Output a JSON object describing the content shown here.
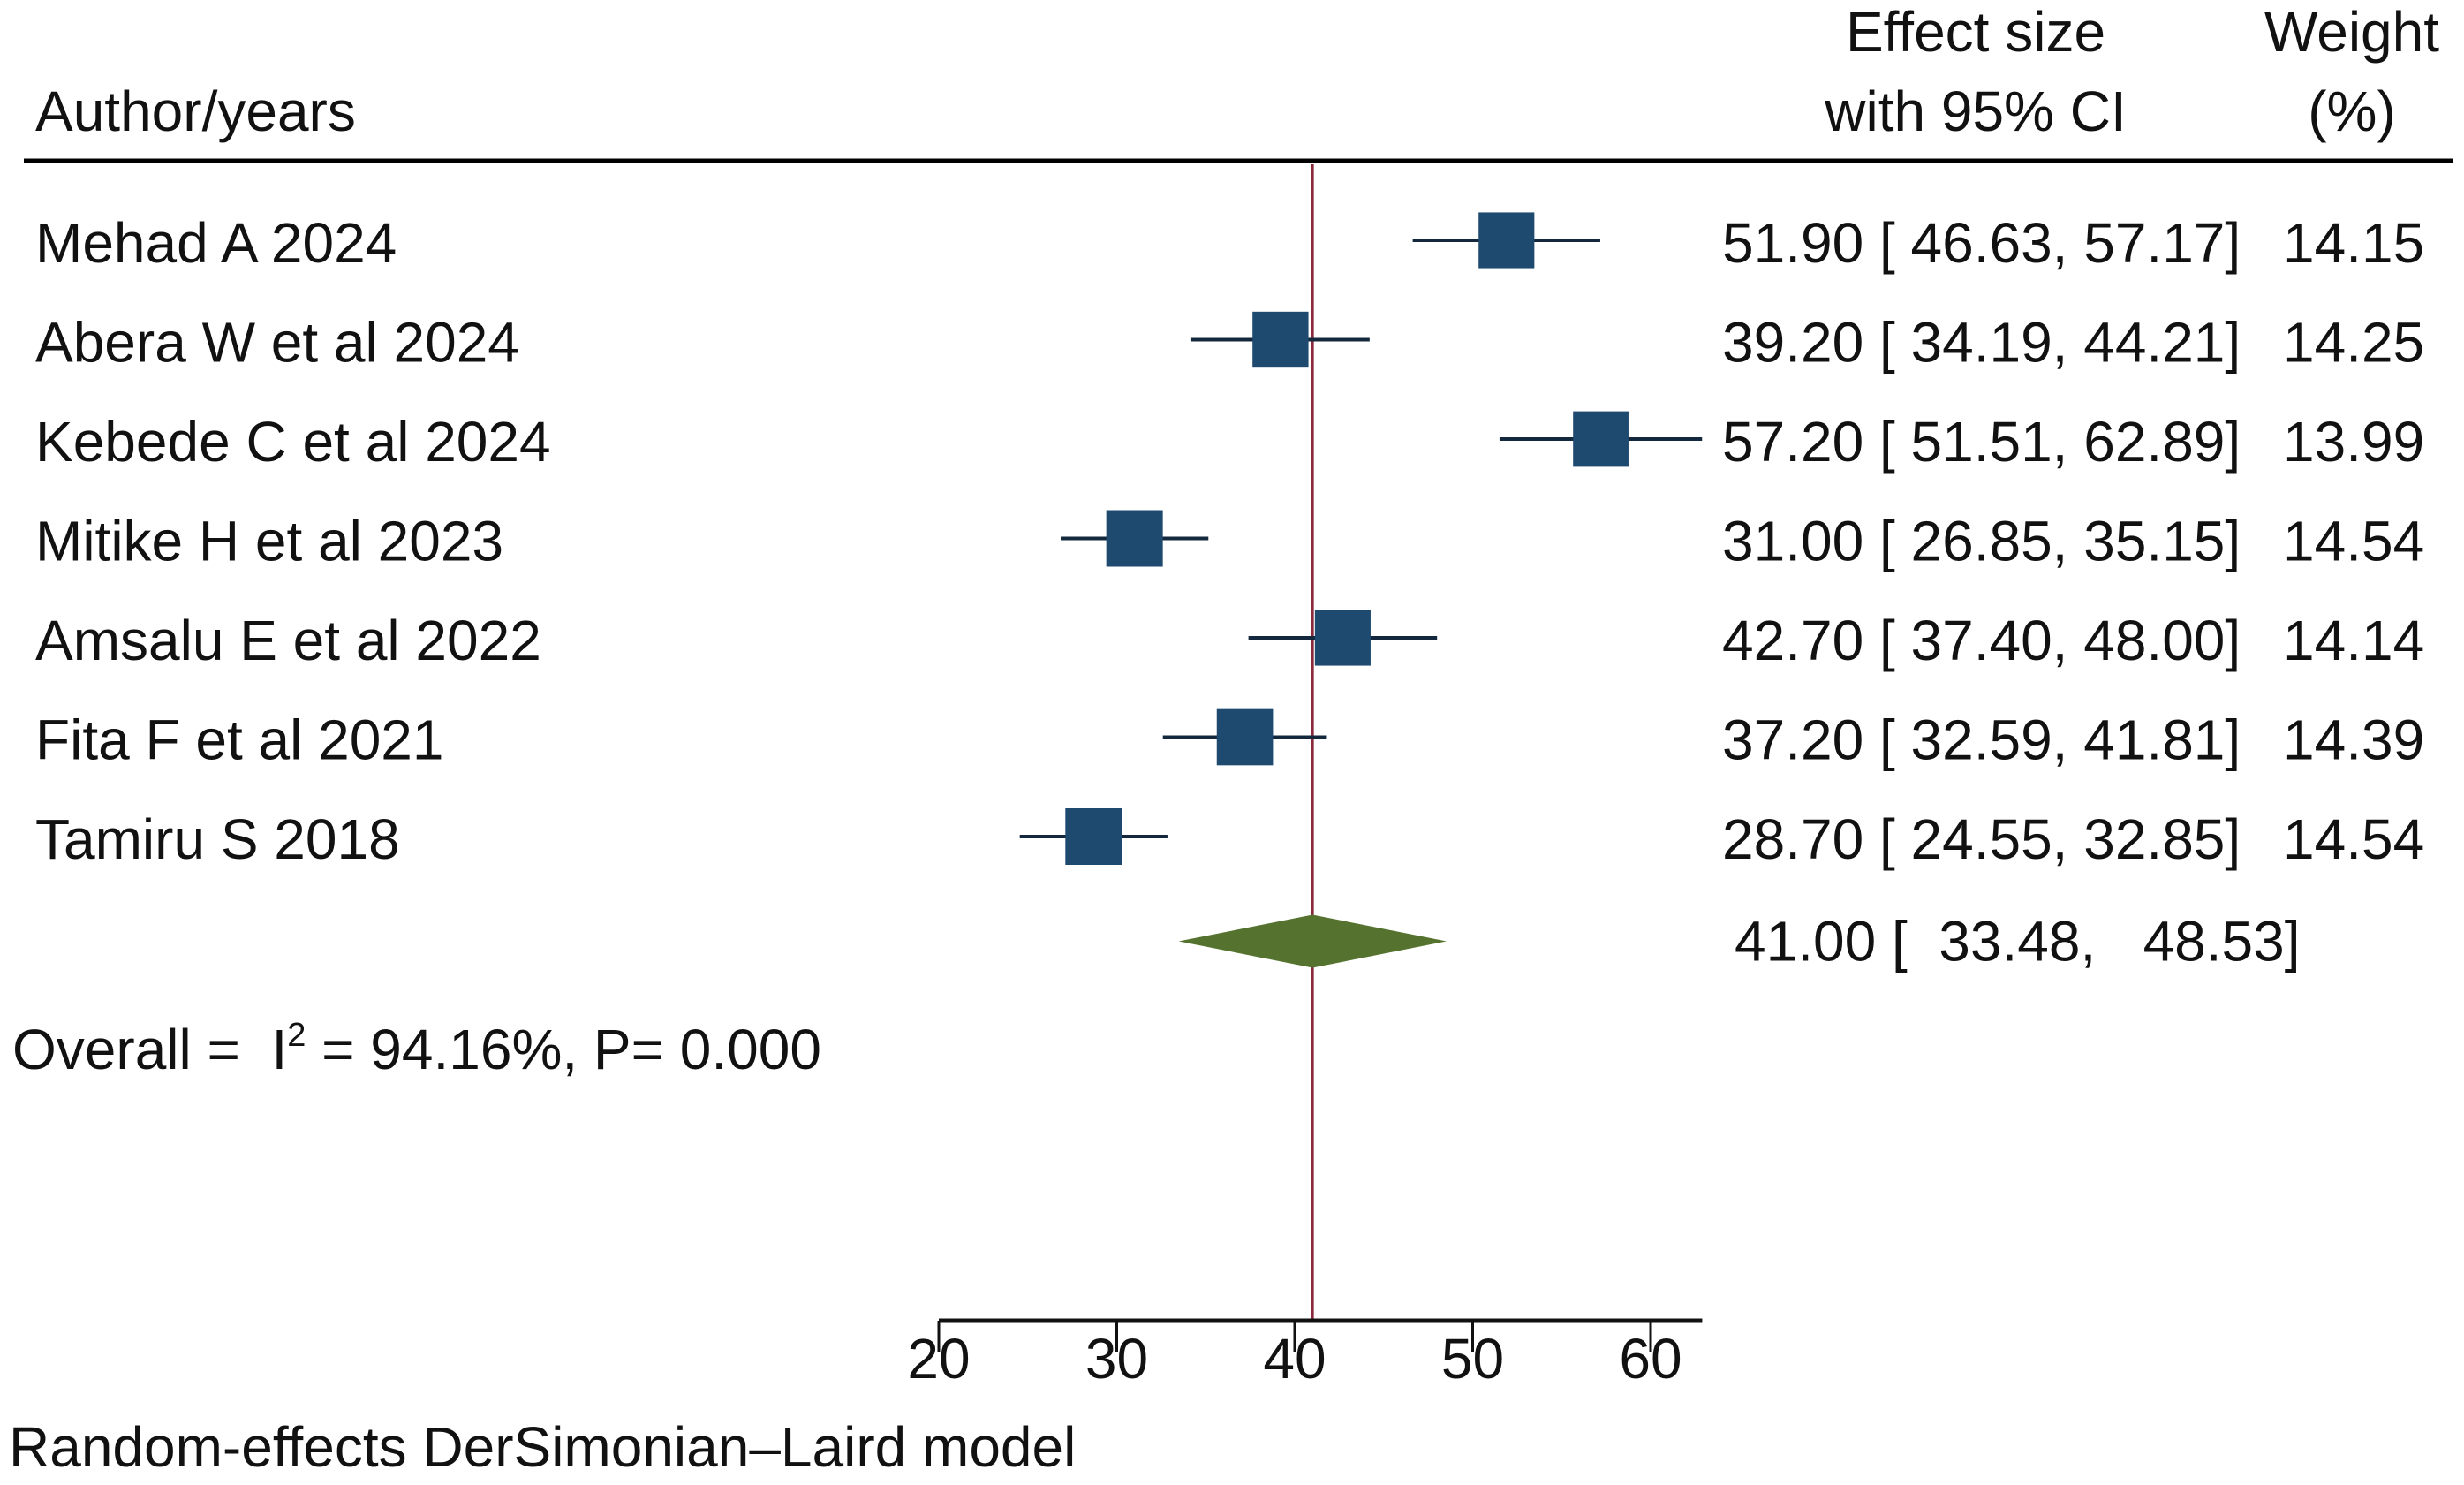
{
  "chart_data": {
    "type": "forest",
    "headers": {
      "study": "Author/years",
      "effect_line1": "Effect size",
      "effect_line2": "with 95% CI",
      "weight_line1": "Weight",
      "weight_line2": "(%)"
    },
    "studies": [
      {
        "label": "Mehad A 2024",
        "es": 51.9,
        "lo": 46.63,
        "hi": 57.17,
        "ci_text": "51.90 [ 46.63,  57.17]",
        "weight": 14.15,
        "weight_text": "14.15"
      },
      {
        "label": "Abera W et al 2024",
        "es": 39.2,
        "lo": 34.19,
        "hi": 44.21,
        "ci_text": "39.20 [ 34.19,  44.21]",
        "weight": 14.25,
        "weight_text": "14.25"
      },
      {
        "label": "Kebede  C et al 2024",
        "es": 57.2,
        "lo": 51.51,
        "hi": 62.89,
        "ci_text": "57.20 [ 51.51,  62.89]",
        "weight": 13.99,
        "weight_text": "13.99"
      },
      {
        "label": "Mitike H et al 2023",
        "es": 31.0,
        "lo": 26.85,
        "hi": 35.15,
        "ci_text": "31.00 [ 26.85,  35.15]",
        "weight": 14.54,
        "weight_text": "14.54"
      },
      {
        "label": "Amsalu E et al 2022",
        "es": 42.7,
        "lo": 37.4,
        "hi": 48.0,
        "ci_text": "42.70 [ 37.40,  48.00]",
        "weight": 14.14,
        "weight_text": "14.14"
      },
      {
        "label": "Fita F et al 2021",
        "es": 37.2,
        "lo": 32.59,
        "hi": 41.81,
        "ci_text": "37.20 [ 32.59,  41.81]",
        "weight": 14.39,
        "weight_text": "14.39"
      },
      {
        "label": "Tamiru S 2018",
        "es": 28.7,
        "lo": 24.55,
        "hi": 32.85,
        "ci_text": "28.70 [ 24.55,  32.85]",
        "weight": 14.54,
        "weight_text": "14.54"
      }
    ],
    "overall": {
      "es": 41.0,
      "lo": 33.48,
      "hi": 48.53,
      "ci_text": "41.00 [  33.48,   48.53]",
      "label_prefix": "Overall =  I",
      "label_sup": "2",
      "label_suffix": " = 94.16%, P= 0.000",
      "i_squared": 94.16,
      "p_value": "0.000"
    },
    "x_axis": {
      "ticks": [
        20,
        30,
        40,
        50,
        60
      ],
      "tick_labels": [
        "20",
        "30",
        "40",
        "50",
        "60"
      ],
      "range": [
        20,
        62.9
      ]
    },
    "reference_line": 41.0,
    "footnote": "Random-effects DerSimonian–Laird model",
    "colors": {
      "marker": "#1f4a70",
      "ci_line": "#14283d",
      "diamond": "#55722f",
      "reference_line": "#8b2a3a",
      "text": "#111111"
    }
  }
}
